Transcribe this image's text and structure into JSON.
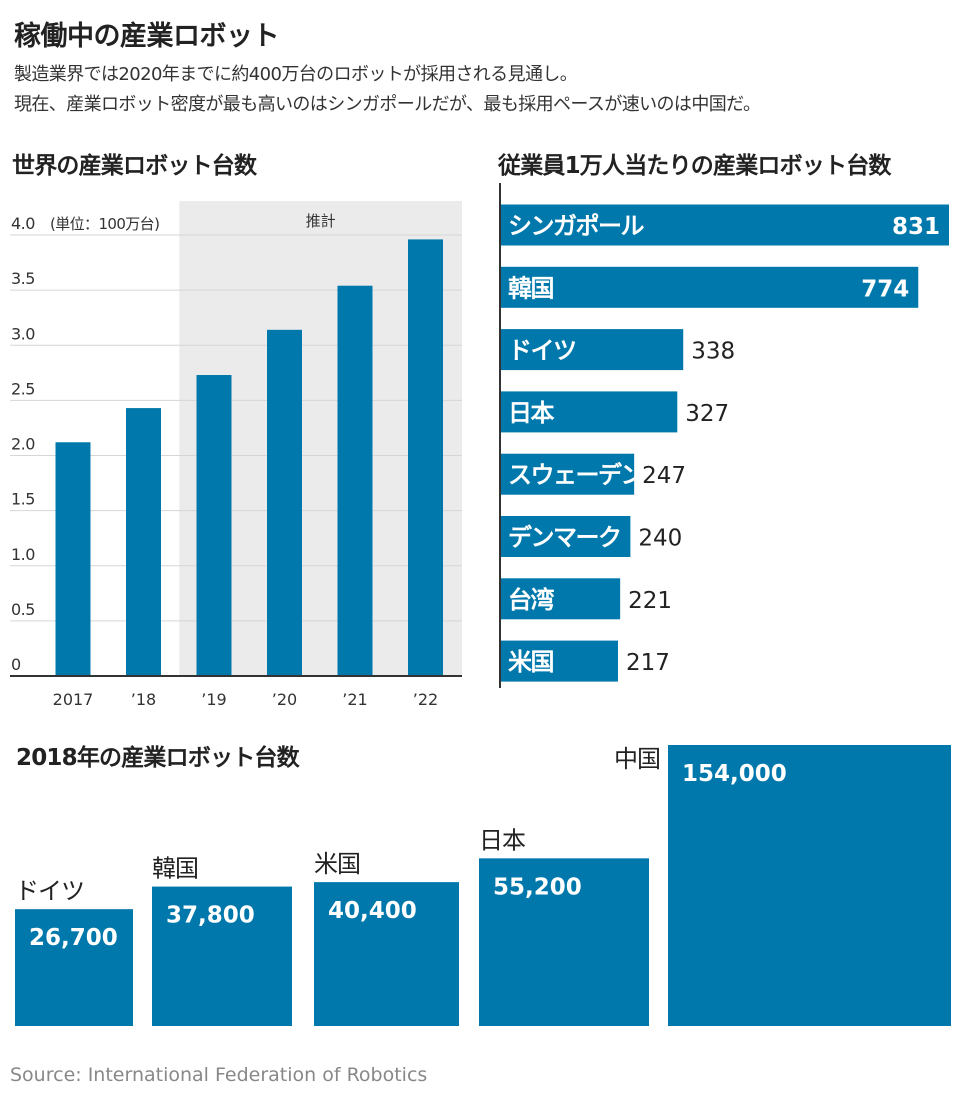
{
  "header": {
    "title": "稼働中の産業ロボット",
    "subtitle_line1": "製造業界では2020年までに約400万台のロボットが採用される見通し。",
    "subtitle_line2": "現在、産業ロボット密度が最も高いのはシンガポールだが、最も採用ペースが速いのは中国だ。"
  },
  "colors": {
    "bar": "#0078ab",
    "projection_bg": "#ebebeb",
    "grid": "#d6d6d6",
    "axis": "#333333"
  },
  "chart_data": [
    {
      "type": "bar",
      "title": "世界の産業ロボット台数",
      "unit_label": "(単位：100万台)",
      "projection_label": "推計",
      "categories": [
        "2017",
        "’18",
        "’19",
        "’20",
        "’21",
        "’22"
      ],
      "values": [
        2.12,
        2.43,
        2.73,
        3.14,
        3.54,
        3.96
      ],
      "projection_from_index": 2,
      "ylim": [
        0,
        4.0
      ],
      "yticks": [
        "0",
        "0.5",
        "1.0",
        "1.5",
        "2.0",
        "2.5",
        "3.0",
        "3.5",
        "4.0"
      ],
      "grid": true
    },
    {
      "type": "bar",
      "orientation": "horizontal",
      "title": "従業員1万人当たりの産業ロボット台数",
      "categories": [
        "シンガポール",
        "韓国",
        "ドイツ",
        "日本",
        "スウェーデン",
        "デンマーク",
        "台湾",
        "米国"
      ],
      "values": [
        831,
        774,
        338,
        327,
        247,
        240,
        221,
        217
      ],
      "value_labels": [
        "831",
        "774",
        "338",
        "327",
        "247",
        "240",
        "221",
        "217"
      ]
    },
    {
      "type": "bar",
      "title": "2018年の産業ロボット台数",
      "categories": [
        "ドイツ",
        "韓国",
        "米国",
        "日本",
        "中国"
      ],
      "values": [
        26700,
        37800,
        40400,
        55200,
        154000
      ],
      "value_labels": [
        "26,700",
        "37,800",
        "40,400",
        "55,200",
        "154,000"
      ]
    }
  ],
  "source": "Source: International Federation of Robotics"
}
